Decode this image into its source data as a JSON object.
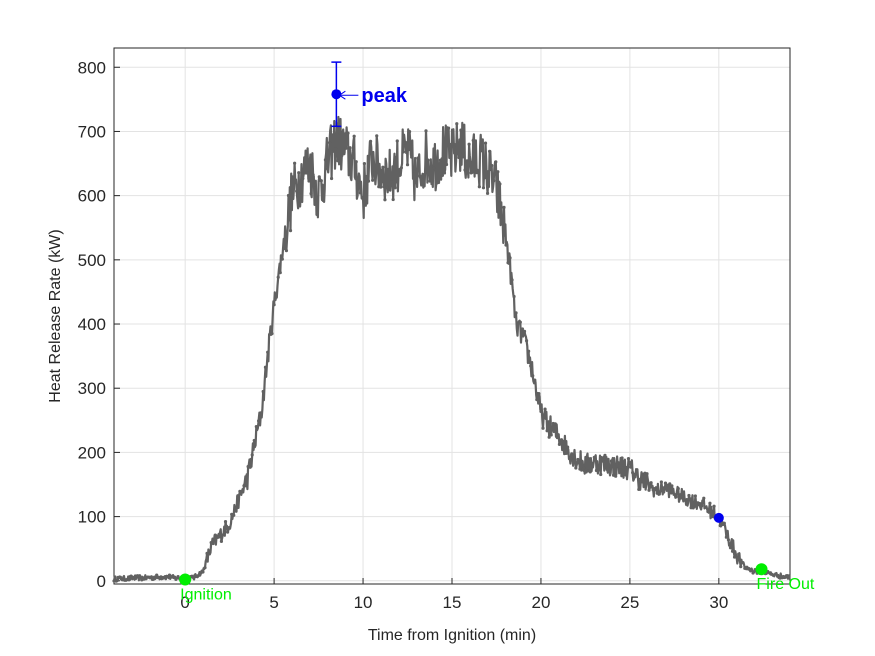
{
  "chart_data": {
    "type": "line",
    "title": "",
    "xlabel": "Time from Ignition (min)",
    "ylabel": "Heat Release Rate (kW)",
    "xlim": [
      -4,
      34
    ],
    "ylim": [
      -5,
      830
    ],
    "xticks": [
      0,
      5,
      10,
      15,
      20,
      25,
      30
    ],
    "yticks": [
      0,
      100,
      200,
      300,
      400,
      500,
      600,
      700,
      800
    ],
    "grid": true,
    "series": [
      {
        "name": "",
        "color": "#616161",
        "points": [
          [
            -4.0,
            3
          ],
          [
            -3.0,
            4
          ],
          [
            -2.0,
            5
          ],
          [
            -1.0,
            6
          ],
          [
            0.0,
            3
          ],
          [
            0.5,
            5
          ],
          [
            1.0,
            15
          ],
          [
            1.5,
            55
          ],
          [
            2.0,
            72
          ],
          [
            2.5,
            90
          ],
          [
            3.0,
            125
          ],
          [
            3.5,
            160
          ],
          [
            4.0,
            225
          ],
          [
            4.3,
            265
          ],
          [
            4.6,
            340
          ],
          [
            5.0,
            430
          ],
          [
            5.5,
            520
          ],
          [
            6.0,
            600
          ],
          [
            6.5,
            630
          ],
          [
            7.0,
            650
          ],
          [
            7.5,
            600
          ],
          [
            8.0,
            650
          ],
          [
            8.5,
            690
          ],
          [
            9.0,
            670
          ],
          [
            9.5,
            650
          ],
          [
            10.0,
            600
          ],
          [
            10.5,
            660
          ],
          [
            11.0,
            640
          ],
          [
            11.5,
            630
          ],
          [
            12.0,
            650
          ],
          [
            12.5,
            670
          ],
          [
            13.0,
            620
          ],
          [
            13.5,
            660
          ],
          [
            14.0,
            650
          ],
          [
            14.5,
            670
          ],
          [
            15.0,
            660
          ],
          [
            15.5,
            680
          ],
          [
            16.0,
            650
          ],
          [
            16.5,
            660
          ],
          [
            17.0,
            640
          ],
          [
            17.5,
            610
          ],
          [
            18.0,
            540
          ],
          [
            18.3,
            480
          ],
          [
            18.6,
            400
          ],
          [
            19.0,
            380
          ],
          [
            19.5,
            330
          ],
          [
            20.0,
            260
          ],
          [
            20.5,
            240
          ],
          [
            21.0,
            225
          ],
          [
            21.5,
            205
          ],
          [
            22.0,
            190
          ],
          [
            22.5,
            180
          ],
          [
            23.0,
            185
          ],
          [
            24.0,
            180
          ],
          [
            25.0,
            175
          ],
          [
            25.5,
            160
          ],
          [
            26.0,
            150
          ],
          [
            26.5,
            140
          ],
          [
            27.0,
            145
          ],
          [
            28.0,
            130
          ],
          [
            29.0,
            120
          ],
          [
            29.5,
            110
          ],
          [
            30.0,
            100
          ],
          [
            30.5,
            70
          ],
          [
            31.0,
            40
          ],
          [
            31.5,
            20
          ],
          [
            32.0,
            15
          ],
          [
            32.5,
            15
          ],
          [
            33.0,
            10
          ],
          [
            34.0,
            5
          ]
        ]
      }
    ],
    "markers": [
      {
        "label": "peak",
        "x": 8.5,
        "y": 758,
        "err": 50,
        "color": "#0000ee"
      },
      {
        "label": "",
        "x": 30.0,
        "y": 98,
        "color": "#0000ee"
      },
      {
        "label": "Ignition",
        "x": 0.0,
        "y": 2,
        "color": "#00ee00"
      },
      {
        "label": "Fire Out",
        "x": 32.4,
        "y": 18,
        "color": "#00ee00"
      }
    ],
    "legend": "none"
  }
}
